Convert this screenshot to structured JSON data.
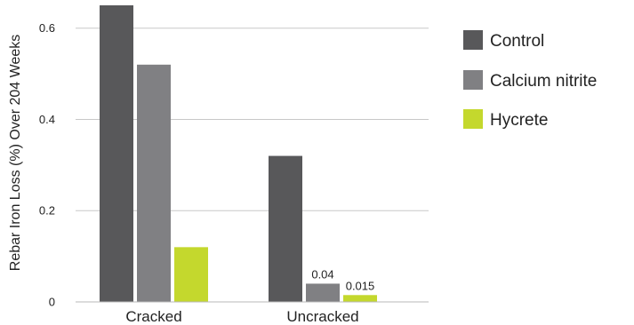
{
  "chart_data": {
    "type": "bar",
    "title": "",
    "xlabel": "",
    "ylabel": "Rebar Iron Loss (%) Over 204 Weeks",
    "ylim": [
      0,
      0.65
    ],
    "yticks": [
      0,
      0.2,
      0.4,
      0.6
    ],
    "ytick_labels": [
      "0",
      "0.2",
      "0.4",
      "0.6"
    ],
    "grid": true,
    "legend_position": "top-right",
    "categories": [
      "Cracked",
      "Uncracked"
    ],
    "series": [
      {
        "name": "Control",
        "color": "#58585a",
        "values": [
          0.65,
          0.32
        ],
        "data_labels": [
          "",
          ""
        ]
      },
      {
        "name": "Calcium nitrite",
        "color": "#808083",
        "values": [
          0.52,
          0.04
        ],
        "data_labels": [
          "",
          "0.04"
        ]
      },
      {
        "name": "Hycrete",
        "color": "#c4d82d",
        "values": [
          0.12,
          0.015
        ],
        "data_labels": [
          "",
          "0.015"
        ]
      }
    ]
  }
}
